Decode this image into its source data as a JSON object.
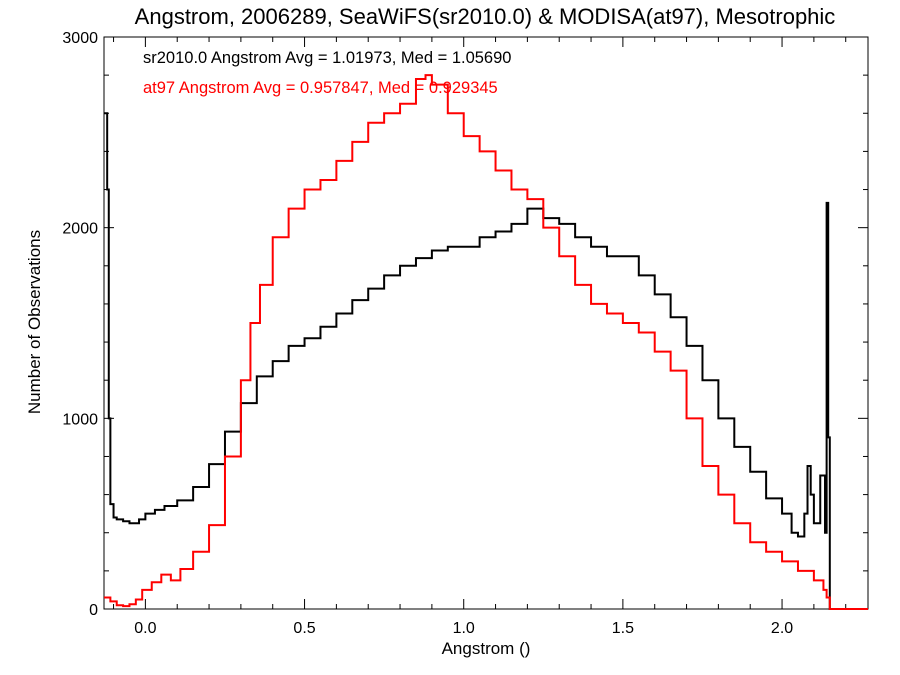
{
  "chart_data": {
    "type": "line",
    "title": "Angstrom, 2006289, SeaWiFS(sr2010.0) & MODISA(at97), Mesotrophic",
    "xlabel": "Angstrom ()",
    "ylabel": "Number of Observations",
    "xlim": [
      -0.13,
      2.27
    ],
    "ylim": [
      0,
      3000
    ],
    "x_ticks": [
      0.0,
      0.5,
      1.0,
      1.5,
      2.0
    ],
    "x_tick_labels": [
      "0.0",
      "0.5",
      "1.0",
      "1.5",
      "2.0"
    ],
    "y_ticks": [
      0,
      1000,
      2000,
      3000
    ],
    "y_tick_labels": [
      "0",
      "1000",
      "2000",
      "3000"
    ],
    "grid": false,
    "step": true,
    "annotations": [
      {
        "text": "sr2010.0 Angstrom Avg = 1.01973, Med = 1.05690",
        "color": "#000000"
      },
      {
        "text": "at97 Angstrom Avg = 0.957847, Med = 0.929345",
        "color": "#ff0000"
      }
    ],
    "series": [
      {
        "color": "#000000",
        "x": [
          -0.13,
          -0.12,
          -0.115,
          -0.11,
          -0.1,
          -0.09,
          -0.07,
          -0.05,
          -0.02,
          0.0,
          0.03,
          0.06,
          0.1,
          0.15,
          0.2,
          0.25,
          0.3,
          0.35,
          0.4,
          0.45,
          0.5,
          0.55,
          0.6,
          0.65,
          0.7,
          0.75,
          0.8,
          0.85,
          0.9,
          0.95,
          1.0,
          1.05,
          1.1,
          1.15,
          1.2,
          1.25,
          1.3,
          1.35,
          1.4,
          1.45,
          1.5,
          1.55,
          1.6,
          1.65,
          1.7,
          1.75,
          1.8,
          1.85,
          1.9,
          1.95,
          2.0,
          2.03,
          2.05,
          2.07,
          2.08,
          2.09,
          2.1,
          2.12,
          2.135,
          2.14,
          2.145,
          2.15,
          2.16,
          2.2,
          2.27
        ],
        "y": [
          2600,
          2200,
          1000,
          550,
          480,
          470,
          460,
          450,
          470,
          500,
          520,
          540,
          570,
          640,
          760,
          930,
          1080,
          1220,
          1300,
          1380,
          1420,
          1480,
          1550,
          1620,
          1680,
          1750,
          1800,
          1840,
          1880,
          1900,
          1900,
          1950,
          1980,
          2020,
          2100,
          2050,
          2020,
          1950,
          1900,
          1850,
          1850,
          1750,
          1650,
          1530,
          1380,
          1200,
          1000,
          850,
          720,
          580,
          500,
          400,
          380,
          500,
          750,
          600,
          450,
          700,
          400,
          2130,
          900,
          0,
          0,
          0,
          0
        ]
      },
      {
        "color": "#ff0000",
        "x": [
          -0.13,
          -0.11,
          -0.09,
          -0.07,
          -0.05,
          -0.03,
          -0.01,
          0.02,
          0.05,
          0.08,
          0.11,
          0.15,
          0.2,
          0.25,
          0.3,
          0.33,
          0.36,
          0.4,
          0.45,
          0.5,
          0.55,
          0.6,
          0.65,
          0.7,
          0.75,
          0.8,
          0.85,
          0.88,
          0.9,
          0.95,
          1.0,
          1.05,
          1.1,
          1.15,
          1.2,
          1.25,
          1.3,
          1.35,
          1.4,
          1.45,
          1.5,
          1.55,
          1.6,
          1.65,
          1.7,
          1.75,
          1.8,
          1.85,
          1.9,
          1.95,
          2.0,
          2.05,
          2.1,
          2.13,
          2.14,
          2.15,
          2.2,
          2.27
        ],
        "y": [
          60,
          40,
          20,
          15,
          25,
          50,
          100,
          140,
          180,
          150,
          210,
          300,
          440,
          800,
          1200,
          1500,
          1700,
          1950,
          2100,
          2200,
          2250,
          2350,
          2450,
          2550,
          2600,
          2650,
          2780,
          2800,
          2750,
          2600,
          2480,
          2400,
          2300,
          2200,
          2150,
          2000,
          1850,
          1700,
          1600,
          1550,
          1500,
          1450,
          1350,
          1250,
          1000,
          750,
          600,
          450,
          350,
          300,
          250,
          200,
          150,
          100,
          60,
          0,
          0,
          0
        ]
      }
    ]
  }
}
